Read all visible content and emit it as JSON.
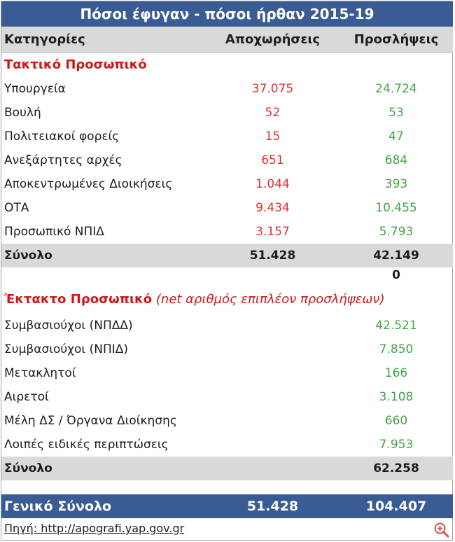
{
  "title": "Πόσοι έφυγαν - πόσοι ήρθαν 2015-19",
  "header": {
    "col1": "Κατηγορίες",
    "col2": "Αποχωρήσεις",
    "col3": "Προσλήψεις"
  },
  "section1": {
    "heading": "Τακτικό Προσωπικό"
  },
  "regular_rows": [
    {
      "label": "Υπουργεία",
      "departures": "37.075",
      "hires": "24.724"
    },
    {
      "label": "Βουλή",
      "departures": "52",
      "hires": "53"
    },
    {
      "label": "Πολιτειακοί φορείς",
      "departures": "15",
      "hires": "47"
    },
    {
      "label": "Ανεξάρτητες αρχές",
      "departures": "651",
      "hires": "684"
    },
    {
      "label": "Αποκεντρωμένες Διοικήσεις",
      "departures": "1.044",
      "hires": "393"
    },
    {
      "label": "ΟΤΑ",
      "departures": "9.434",
      "hires": "10.455"
    },
    {
      "label": "Προσωπικό ΝΠΙΔ",
      "departures": "3.157",
      "hires": "5.793"
    }
  ],
  "regular_total": {
    "label": "Σύνολο",
    "departures": "51.428",
    "hires": "42.149"
  },
  "zero_value": "0",
  "section2": {
    "heading": "Έκτακτο Προσωπικό",
    "note": "(net αριθμός επιπλέον προσλήψεων)"
  },
  "temporary_rows": [
    {
      "label": "Συμβασιούχοι (ΝΠΔΔ)",
      "hires": "42.521"
    },
    {
      "label": "Συμβασιούχοι (ΝΠΙΔ)",
      "hires": "7.850"
    },
    {
      "label": "Μετακλητοί",
      "hires": "166"
    },
    {
      "label": "Αιρετοί",
      "hires": "3.108"
    },
    {
      "label": "Μέλη ΔΣ / Όργανα Διοίκησης",
      "hires": "660"
    },
    {
      "label": "Λοιπές ειδικές περιπτώσεις",
      "hires": "7.953"
    }
  ],
  "temporary_total": {
    "label": "Σύνολο",
    "hires": "62.258"
  },
  "grand_total": {
    "label": "Γενικό Σύνολο",
    "departures": "51.428",
    "hires": "104.407"
  },
  "source": "Πηγή: http://apografi.yap.gov.gr",
  "colors": {
    "title_bg": "#3a5c94",
    "header_bg": "#d9d9d9",
    "departures": "#e03030",
    "hires": "#43a347",
    "section_heading": "#d01818"
  },
  "icons": {
    "zoom": "zoom-in-icon"
  }
}
